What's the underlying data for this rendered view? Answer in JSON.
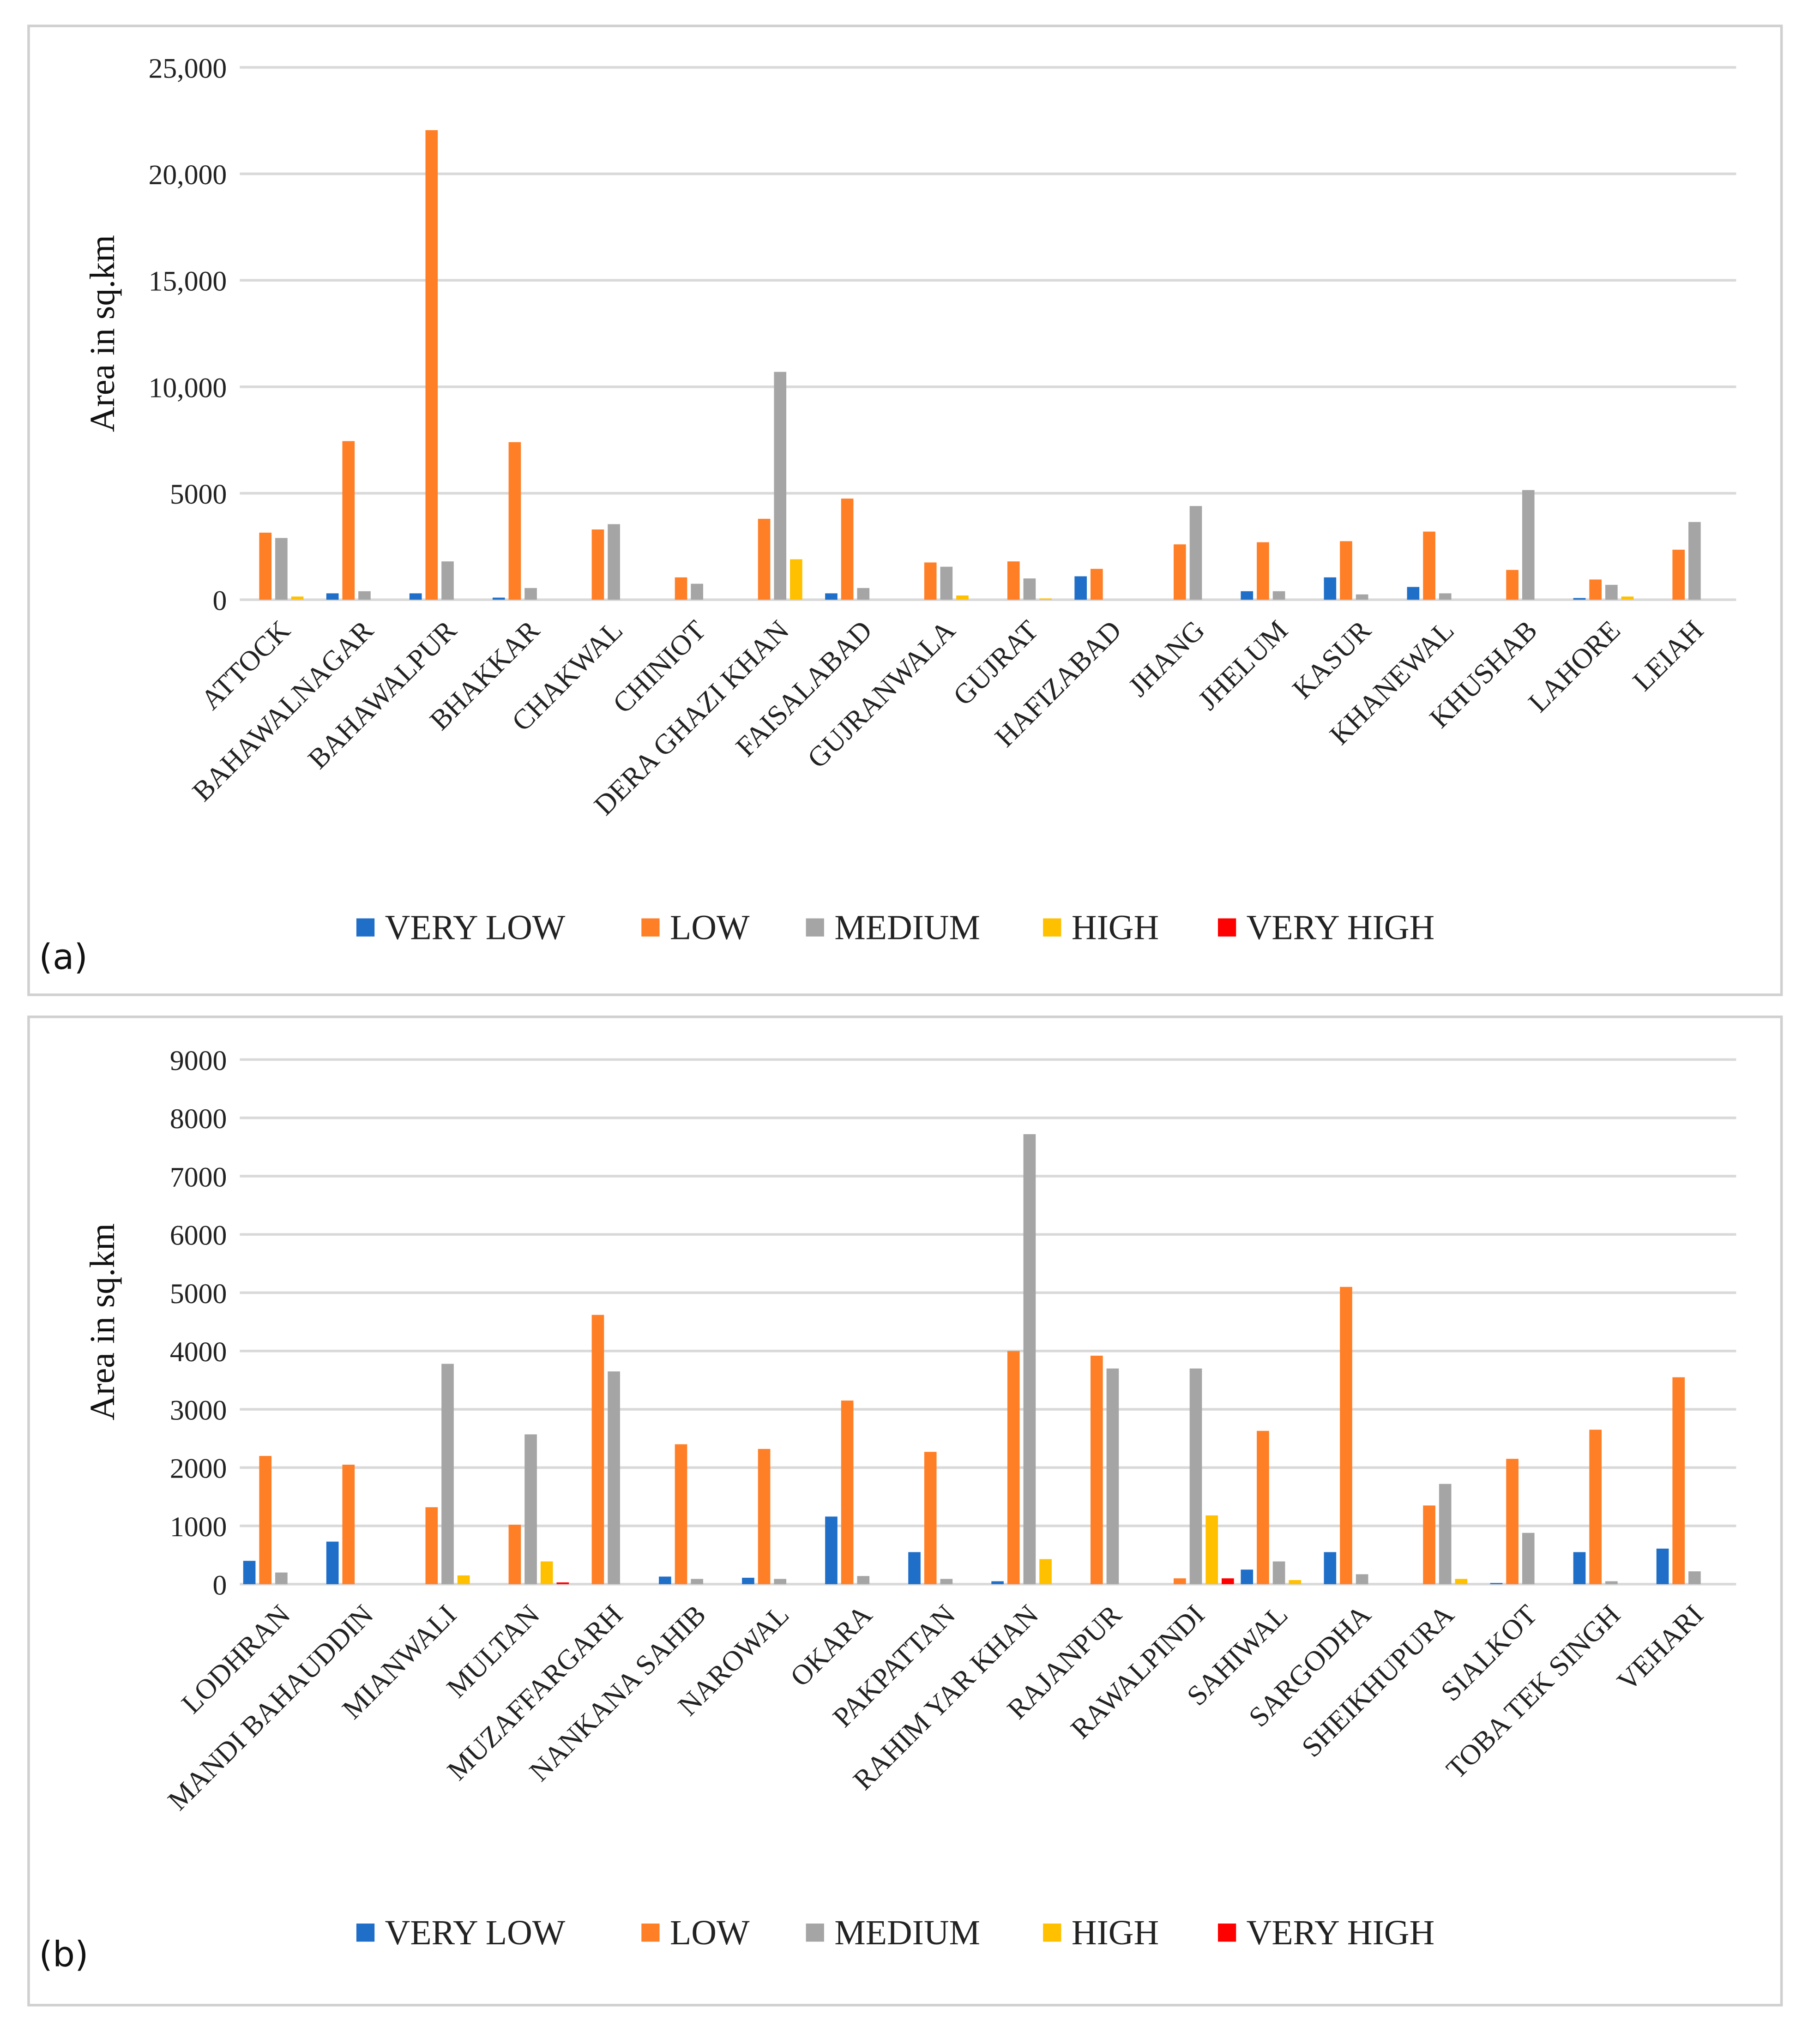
{
  "colors": {
    "VERY LOW": "#1f6fc9",
    "LOW": "#ff7f27",
    "MEDIUM": "#a5a5a5",
    "HIGH": "#ffc000",
    "VERY HIGH": "#ff0000",
    "grid": "#d9d9d9",
    "border": "#d0d0d0"
  },
  "chart_data": [
    {
      "type": "bar",
      "panel_label": "(a)",
      "ylabel": "Area in sq.km",
      "xlabel": "",
      "ylim": [
        0,
        25000
      ],
      "yticks": [
        0,
        5000,
        10000,
        15000,
        20000,
        25000
      ],
      "ytick_labels": [
        "0",
        "5000",
        "10,000",
        "15,000",
        "20,000",
        "25,000"
      ],
      "grid": true,
      "legend_position": "bottom",
      "categories": [
        "ATTOCK",
        "BAHAWALNAGAR",
        "BAHAWALPUR",
        "BHAKKAR",
        "CHAKWAL",
        "CHINIOT",
        "DERA GHAZI KHAN",
        "FAISALABAD",
        "GUJRANWALA",
        "GUJRAT",
        "HAFIZABAD",
        "JHANG",
        "JHELUM",
        "KASUR",
        "KHANEWAL",
        "KHUSHAB",
        "LAHORE",
        "LEIAH"
      ],
      "series": [
        {
          "name": "VERY LOW",
          "values": [
            0,
            300,
            300,
            100,
            0,
            0,
            0,
            300,
            0,
            0,
            1100,
            0,
            400,
            1050,
            600,
            0,
            80,
            0
          ]
        },
        {
          "name": "LOW",
          "values": [
            3150,
            7450,
            22050,
            7400,
            3300,
            1050,
            3800,
            4750,
            1750,
            1800,
            1450,
            2600,
            2700,
            2750,
            3200,
            1400,
            950,
            2350
          ]
        },
        {
          "name": "MEDIUM",
          "values": [
            2900,
            400,
            1800,
            550,
            3550,
            750,
            10700,
            550,
            1550,
            1000,
            0,
            4400,
            400,
            250,
            300,
            5150,
            700,
            3650
          ]
        },
        {
          "name": "HIGH",
          "values": [
            150,
            0,
            0,
            0,
            0,
            0,
            1900,
            0,
            200,
            60,
            0,
            0,
            0,
            0,
            0,
            0,
            150,
            0
          ]
        },
        {
          "name": "VERY HIGH",
          "values": [
            0,
            0,
            0,
            0,
            0,
            0,
            0,
            0,
            0,
            0,
            0,
            0,
            0,
            0,
            0,
            0,
            0,
            0
          ]
        }
      ]
    },
    {
      "type": "bar",
      "panel_label": "(b)",
      "ylabel": "Area in sq.km",
      "xlabel": "",
      "ylim": [
        0,
        9000
      ],
      "yticks": [
        0,
        1000,
        2000,
        3000,
        4000,
        5000,
        6000,
        7000,
        8000,
        9000
      ],
      "ytick_labels": [
        "0",
        "1000",
        "2000",
        "3000",
        "4000",
        "5000",
        "6000",
        "7000",
        "8000",
        "9000"
      ],
      "grid": true,
      "legend_position": "bottom",
      "categories": [
        "LODHRAN",
        "MANDI BAHAUDDIN",
        "MIANWALI",
        "MULTAN",
        "MUZAFFARGARH",
        "NANKANA SAHIB",
        "NAROWAL",
        "OKARA",
        "PAKPATTAN",
        "RAHIM YAR KHAN",
        "RAJANPUR",
        "RAWALPINDI",
        "SAHIWAL",
        "SARGODHA",
        "SHEIKHUPURA",
        "SIALKOT",
        "TOBA TEK SINGH",
        "VEHARI"
      ],
      "series": [
        {
          "name": "VERY LOW",
          "values": [
            400,
            730,
            0,
            0,
            0,
            130,
            110,
            1160,
            550,
            50,
            0,
            0,
            250,
            550,
            0,
            20,
            550,
            610
          ]
        },
        {
          "name": "LOW",
          "values": [
            2200,
            2050,
            1320,
            1020,
            4620,
            2400,
            2320,
            3150,
            2270,
            4000,
            3920,
            100,
            2630,
            5100,
            1350,
            2150,
            2650,
            3550
          ]
        },
        {
          "name": "MEDIUM",
          "values": [
            200,
            0,
            3780,
            2570,
            3650,
            90,
            90,
            140,
            90,
            7720,
            3700,
            3700,
            390,
            170,
            1720,
            880,
            50,
            220
          ]
        },
        {
          "name": "HIGH",
          "values": [
            0,
            0,
            150,
            390,
            0,
            0,
            0,
            0,
            0,
            430,
            0,
            1180,
            70,
            0,
            90,
            0,
            0,
            0
          ]
        },
        {
          "name": "VERY HIGH",
          "values": [
            0,
            0,
            0,
            30,
            0,
            0,
            0,
            0,
            0,
            0,
            0,
            100,
            0,
            0,
            0,
            0,
            0,
            0
          ]
        }
      ]
    }
  ]
}
